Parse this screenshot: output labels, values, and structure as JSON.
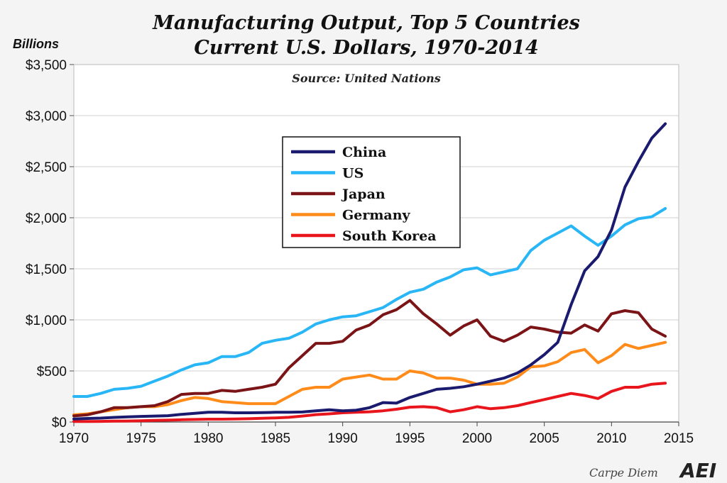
{
  "chart_data": {
    "type": "line",
    "title": "Manufacturing Output, Top 5 Countries",
    "subtitle": "Current U.S. Dollars, 1970-2014",
    "units_label": "Billions",
    "source": "Source: United Nations",
    "xlim": [
      1970,
      2015
    ],
    "ylim": [
      0,
      3500
    ],
    "x_ticks": [
      1970,
      1975,
      1980,
      1985,
      1990,
      1995,
      2000,
      2005,
      2010,
      2015
    ],
    "x_tick_labels": [
      "1970",
      "1975",
      "1980",
      "1985",
      "1990",
      "1995",
      "2000",
      "2005",
      "2010",
      "2015"
    ],
    "y_ticks": [
      0,
      500,
      1000,
      1500,
      2000,
      2500,
      3000,
      3500
    ],
    "y_tick_labels": [
      "$0",
      "$500",
      "$1,000",
      "$1,500",
      "$2,000",
      "$2,500",
      "$3,000",
      "$3,500"
    ],
    "grid": "horizontal",
    "legend_position": "upper-center",
    "x": [
      1970,
      1971,
      1972,
      1973,
      1974,
      1975,
      1976,
      1977,
      1978,
      1979,
      1980,
      1981,
      1982,
      1983,
      1984,
      1985,
      1986,
      1987,
      1988,
      1989,
      1990,
      1991,
      1992,
      1993,
      1994,
      1995,
      1996,
      1997,
      1998,
      1999,
      2000,
      2001,
      2002,
      2003,
      2004,
      2005,
      2006,
      2007,
      2008,
      2009,
      2010,
      2011,
      2012,
      2013,
      2014
    ],
    "series": [
      {
        "name": "China",
        "color": "#1a1a6e",
        "values": [
          30,
          35,
          38,
          45,
          50,
          55,
          58,
          62,
          75,
          85,
          95,
          95,
          90,
          90,
          92,
          95,
          96,
          98,
          110,
          120,
          110,
          115,
          140,
          190,
          185,
          240,
          280,
          320,
          330,
          345,
          370,
          400,
          430,
          480,
          560,
          660,
          780,
          1150,
          1480,
          1620,
          1880,
          2300,
          2550,
          2780,
          2920
        ]
      },
      {
        "name": "US",
        "color": "#29b6f6",
        "values": [
          250,
          250,
          280,
          320,
          330,
          350,
          400,
          450,
          510,
          560,
          580,
          640,
          640,
          680,
          770,
          800,
          820,
          880,
          960,
          1000,
          1030,
          1040,
          1080,
          1120,
          1200,
          1270,
          1300,
          1370,
          1420,
          1490,
          1510,
          1440,
          1470,
          1500,
          1680,
          1780,
          1850,
          1920,
          1820,
          1730,
          1820,
          1930,
          1990,
          2010,
          2090
        ]
      },
      {
        "name": "Japan",
        "color": "#7b1416",
        "values": [
          60,
          70,
          100,
          140,
          140,
          150,
          160,
          200,
          270,
          280,
          280,
          310,
          300,
          320,
          340,
          370,
          530,
          650,
          770,
          770,
          790,
          900,
          950,
          1050,
          1100,
          1190,
          1060,
          960,
          850,
          940,
          1000,
          840,
          790,
          850,
          930,
          910,
          880,
          870,
          950,
          890,
          1060,
          1090,
          1070,
          910,
          840
        ]
      },
      {
        "name": "Germany",
        "color": "#ff8c1a",
        "values": [
          70,
          80,
          100,
          120,
          140,
          150,
          150,
          170,
          210,
          240,
          230,
          200,
          190,
          180,
          180,
          180,
          250,
          320,
          340,
          340,
          420,
          440,
          460,
          420,
          420,
          500,
          480,
          430,
          430,
          410,
          370,
          370,
          380,
          440,
          540,
          550,
          590,
          680,
          710,
          580,
          650,
          760,
          720,
          750,
          780
        ]
      },
      {
        "name": "South Korea",
        "color": "#e8161c",
        "values": [
          5,
          5,
          6,
          8,
          10,
          12,
          15,
          18,
          22,
          25,
          28,
          28,
          30,
          32,
          36,
          40,
          46,
          58,
          72,
          80,
          90,
          95,
          100,
          110,
          125,
          145,
          150,
          140,
          100,
          120,
          150,
          130,
          140,
          160,
          190,
          220,
          250,
          280,
          260,
          230,
          300,
          340,
          340,
          370,
          380
        ]
      }
    ]
  },
  "footer": {
    "brand": "Carpe Diem",
    "logo": "AEI"
  }
}
